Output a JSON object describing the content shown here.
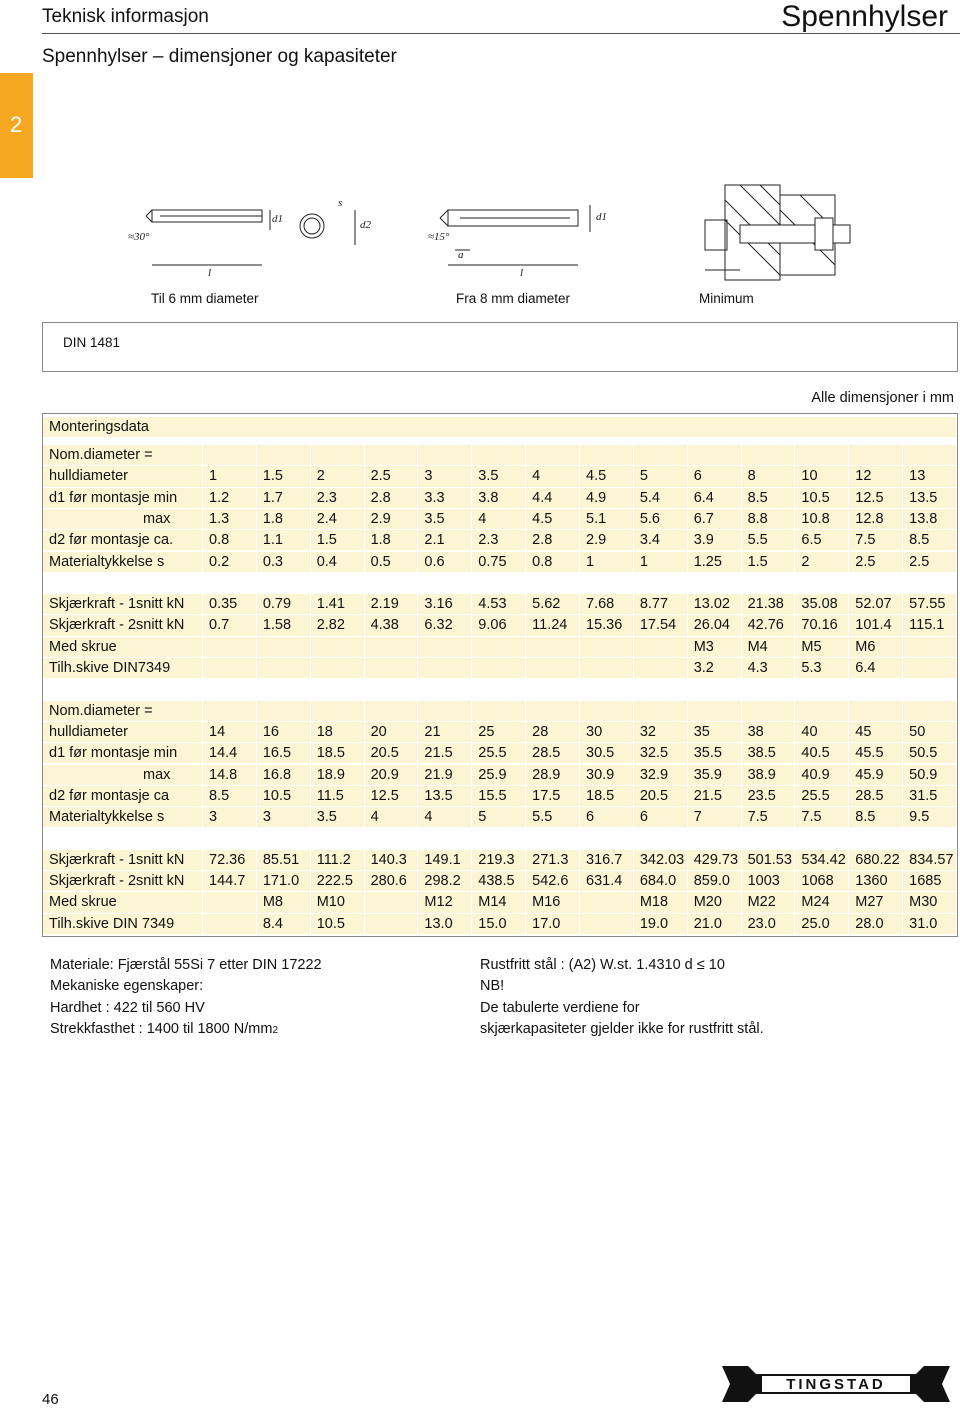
{
  "header": {
    "section": "Teknisk informasjon",
    "product": "Spennhylser",
    "subtitle": "Spennhylser – dimensjoner og kapasiteter",
    "tab": "2"
  },
  "drawings": [
    {
      "caption": "Til 6 mm diameter",
      "labels": [
        "≈30°",
        "l",
        "d1",
        "s",
        "d2"
      ]
    },
    {
      "caption": "Fra 8 mm diameter",
      "labels": [
        "≈15°",
        "a",
        "l",
        "d1"
      ]
    },
    {
      "caption": "Minimum"
    }
  ],
  "standard": "DIN 1481",
  "units_note": "Alle dimensjoner i mm",
  "table": {
    "heading": "Monteringsdata",
    "groups": [
      [
        {
          "label": "Nom.diameter ="
        },
        {
          "label": "hulldiameter",
          "values": [
            "1",
            "1.5",
            "2",
            "2.5",
            "3",
            "3.5",
            "4",
            "4.5",
            "5",
            "6",
            "8",
            "10",
            "12",
            "13"
          ]
        },
        {
          "label": "d1 før montasje min",
          "values": [
            "1.2",
            "1.7",
            "2.3",
            "2.8",
            "3.3",
            "3.8",
            "4.4",
            "4.9",
            "5.4",
            "6.4",
            "8.5",
            "10.5",
            "12.5",
            "13.5"
          ]
        },
        {
          "label": "max",
          "indent": true,
          "values": [
            "1.3",
            "1.8",
            "2.4",
            "2.9",
            "3.5",
            "4",
            "4.5",
            "5.1",
            "5.6",
            "6.7",
            "8.8",
            "10.8",
            "12.8",
            "13.8"
          ]
        },
        {
          "label": "d2 før montasje ca.",
          "values": [
            "0.8",
            "1.1",
            "1.5",
            "1.8",
            "2.1",
            "2.3",
            "2.8",
            "2.9",
            "3.4",
            "3.9",
            "5.5",
            "6.5",
            "7.5",
            "8.5"
          ]
        },
        {
          "label": "Materialtykkelse s",
          "values": [
            "0.2",
            "0.3",
            "0.4",
            "0.5",
            "0.6",
            "0.75",
            "0.8",
            "1",
            "1",
            "1.25",
            "1.5",
            "2",
            "2.5",
            "2.5"
          ]
        }
      ],
      [
        {
          "label": "Skjærkraft - 1snitt kN",
          "values": [
            "0.35",
            "0.79",
            "1.41",
            "2.19",
            "3.16",
            "4.53",
            "5.62",
            "7.68",
            "8.77",
            "13.02",
            "21.38",
            "35.08",
            "52.07",
            "57.55"
          ]
        },
        {
          "label": "Skjærkraft - 2snitt kN",
          "values": [
            "0.7",
            "1.58",
            "2.82",
            "4.38",
            "6.32",
            "9.06",
            "11.24",
            "15.36",
            "17.54",
            "26.04",
            "42.76",
            "70.16",
            "101.4",
            "115.1"
          ]
        },
        {
          "label": "Med skrue",
          "values": [
            null,
            null,
            null,
            null,
            null,
            null,
            null,
            null,
            null,
            "M3",
            "M4",
            "M5",
            "M6",
            null
          ]
        },
        {
          "label": "Tilh.skive DIN7349",
          "values": [
            null,
            null,
            null,
            null,
            null,
            null,
            null,
            null,
            null,
            "3.2",
            "4.3",
            "5.3",
            "6.4",
            null
          ]
        }
      ],
      [
        {
          "label": "Nom.diameter ="
        },
        {
          "label": "hulldiameter",
          "values": [
            "14",
            "16",
            "18",
            "20",
            "21",
            "25",
            "28",
            "30",
            "32",
            "35",
            "38",
            "40",
            "45",
            "50"
          ]
        },
        {
          "label": "d1 før montasje min",
          "values": [
            "14.4",
            "16.5",
            "18.5",
            "20.5",
            "21.5",
            "25.5",
            "28.5",
            "30.5",
            "32.5",
            "35.5",
            "38.5",
            "40.5",
            "45.5",
            "50.5"
          ]
        },
        {
          "label": "max",
          "indent": true,
          "values": [
            "14.8",
            "16.8",
            "18.9",
            "20.9",
            "21.9",
            "25.9",
            "28.9",
            "30.9",
            "32.9",
            "35.9",
            "38.9",
            "40.9",
            "45.9",
            "50.9"
          ]
        },
        {
          "label": "d2 før montasje  ca",
          "values": [
            "8.5",
            "10.5",
            "11.5",
            "12.5",
            "13.5",
            "15.5",
            "17.5",
            "18.5",
            "20.5",
            "21.5",
            "23.5",
            "25.5",
            "28.5",
            "31.5"
          ]
        },
        {
          "label": "Materialtykkelse s",
          "values": [
            "3",
            "3",
            "3.5",
            "4",
            "4",
            "5",
            "5.5",
            "6",
            "6",
            "7",
            "7.5",
            "7.5",
            "8.5",
            "9.5"
          ]
        }
      ],
      [
        {
          "label": "Skjærkraft - 1snitt kN",
          "values": [
            "72.36",
            "85.51",
            "111.2",
            "140.3",
            "149.1",
            "219.3",
            "271.3",
            "316.7",
            "342.03",
            "429.73",
            "501.53",
            "534.42",
            "680.22",
            "834.57"
          ]
        },
        {
          "label": "Skjærkraft - 2snitt kN",
          "values": [
            "144.7",
            "171.0",
            "222.5",
            "280.6",
            "298.2",
            "438.5",
            "542.6",
            "631.4",
            "684.0",
            "859.0",
            "1003",
            "1068",
            "1360",
            "1685"
          ]
        },
        {
          "label": "Med skrue",
          "values": [
            null,
            "M8",
            "M10",
            null,
            "M12",
            "M14",
            "M16",
            null,
            "M18",
            "M20",
            "M22",
            "M24",
            "M27",
            "M30"
          ]
        },
        {
          "label": "Tilh.skive DIN 7349",
          "values": [
            null,
            "8.4",
            "10.5",
            null,
            "13.0",
            "15.0",
            "17.0",
            null,
            "19.0",
            "21.0",
            "23.0",
            "25.0",
            "28.0",
            "31.0"
          ]
        }
      ]
    ]
  },
  "notes": {
    "left": [
      {
        "text": "Materiale: Fjærstål 55Si 7 etter DIN 17222"
      },
      {
        "text": "Mekaniske egenskaper:"
      },
      {
        "text": "Hardhet : 422 til 560 HV"
      },
      {
        "text": "Strekkfasthet : 1400 til 1800 N/mm",
        "sup": "2"
      }
    ],
    "right": [
      {
        "text": "Rustfritt stål : (A2) W.st. 1.4310  d ≤ 10"
      },
      {
        "text": "NB!"
      },
      {
        "text": "De tabulerte verdiene for"
      },
      {
        "text": "skjærkapasiteter gjelder ikke for rustfritt stål."
      }
    ]
  },
  "footer": {
    "page": "46",
    "logo": "TINGSTAD"
  }
}
